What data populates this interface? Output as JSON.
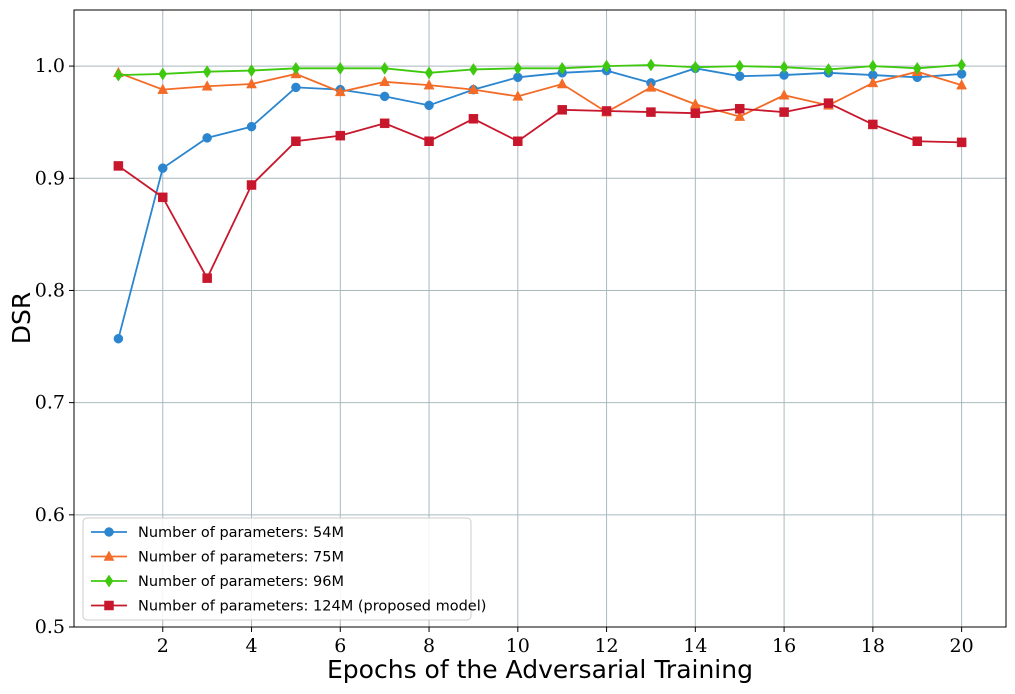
{
  "chart_data": {
    "type": "line",
    "title": "",
    "xlabel": "Epochs of the Adversarial Training",
    "ylabel": "DSR",
    "xlim": [
      0,
      21
    ],
    "ylim": [
      0.5,
      1.05
    ],
    "xticks": [
      2,
      4,
      6,
      8,
      10,
      12,
      14,
      16,
      18,
      20
    ],
    "xtick_labels": [
      "2",
      "4",
      "6",
      "8",
      "10",
      "12",
      "14",
      "16",
      "18",
      "20"
    ],
    "yticks": [
      0.5,
      0.6,
      0.7,
      0.8,
      0.9,
      1.0
    ],
    "ytick_labels": [
      "0.5",
      "0.6",
      "0.7",
      "0.8",
      "0.9",
      "1.0"
    ],
    "grid": true,
    "legend_position": "bottom-left",
    "x": [
      1,
      2,
      3,
      4,
      5,
      6,
      7,
      8,
      9,
      10,
      11,
      12,
      13,
      14,
      15,
      16,
      17,
      18,
      19,
      20
    ],
    "series": [
      {
        "name": "Number of parameters: 54M",
        "color": "#2b86cf",
        "marker": "circle",
        "values": [
          0.757,
          0.909,
          0.936,
          0.946,
          0.981,
          0.979,
          0.973,
          0.965,
          0.979,
          0.99,
          0.994,
          0.996,
          0.985,
          0.998,
          0.991,
          0.992,
          0.994,
          0.992,
          0.99,
          0.993
        ]
      },
      {
        "name": "Number of parameters: 75M",
        "color": "#f36b26",
        "marker": "triangle",
        "values": [
          0.994,
          0.979,
          0.982,
          0.984,
          0.993,
          0.977,
          0.986,
          0.983,
          0.979,
          0.973,
          0.984,
          0.959,
          0.981,
          0.966,
          0.955,
          0.974,
          0.965,
          0.985,
          0.995,
          0.983
        ]
      },
      {
        "name": "Number of parameters: 96M",
        "color": "#3ec90f",
        "marker": "diamond",
        "values": [
          0.992,
          0.993,
          0.995,
          0.996,
          0.998,
          0.998,
          0.998,
          0.994,
          0.997,
          0.998,
          0.998,
          1.0,
          1.001,
          0.999,
          1.0,
          0.999,
          0.997,
          1.0,
          0.998,
          1.001
        ]
      },
      {
        "name": "Number of parameters: 124M (proposed model)",
        "color": "#c8172c",
        "marker": "square",
        "values": [
          0.911,
          0.883,
          0.811,
          0.894,
          0.933,
          0.938,
          0.949,
          0.933,
          0.953,
          0.933,
          0.961,
          0.96,
          0.959,
          0.958,
          0.962,
          0.959,
          0.967,
          0.948,
          0.933,
          0.932
        ]
      }
    ]
  }
}
